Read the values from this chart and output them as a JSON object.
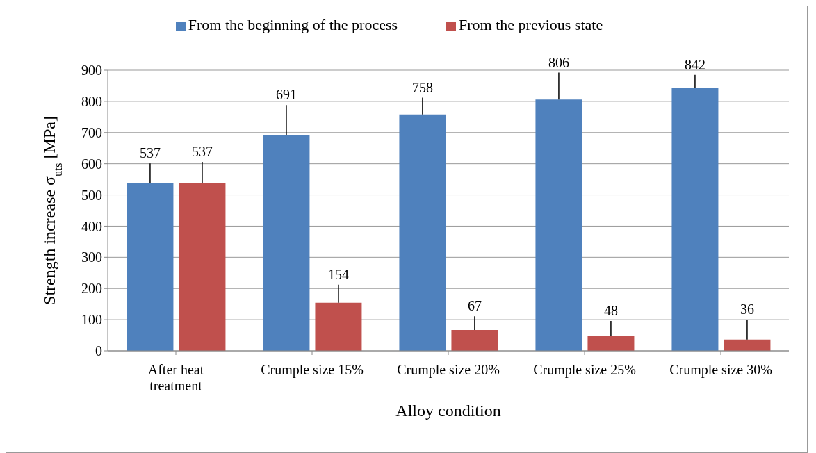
{
  "chart_data": {
    "type": "bar",
    "xlabel": "Alloy condition",
    "ylabel": "Strength increase σ$_{uts}$ [MPa]",
    "categories": [
      "After heat treatment",
      "Crumple size 15%",
      "Crumple size 20%",
      "Crumple size 25%",
      "Crumple size 30%"
    ],
    "series": [
      {
        "name": "From the beginning of the process",
        "color": "#4f81bd",
        "values": [
          537,
          691,
          758,
          806,
          842
        ],
        "errors": [
          [
            537,
            601
          ],
          [
            691,
            788
          ],
          [
            758,
            812
          ],
          [
            806,
            892
          ],
          [
            842,
            885
          ]
        ]
      },
      {
        "name": "From the previous state",
        "color": "#c0504d",
        "values": [
          537,
          154,
          67,
          48,
          36
        ],
        "errors": [
          [
            537,
            606
          ],
          [
            154,
            212
          ],
          [
            67,
            111
          ],
          [
            48,
            96
          ],
          [
            36,
            100
          ]
        ]
      }
    ],
    "ylim": [
      0,
      900
    ],
    "yticks": [
      0,
      100,
      200,
      300,
      400,
      500,
      600,
      700,
      800,
      900
    ],
    "grid": "y",
    "legend": "top",
    "data_labels": true
  }
}
